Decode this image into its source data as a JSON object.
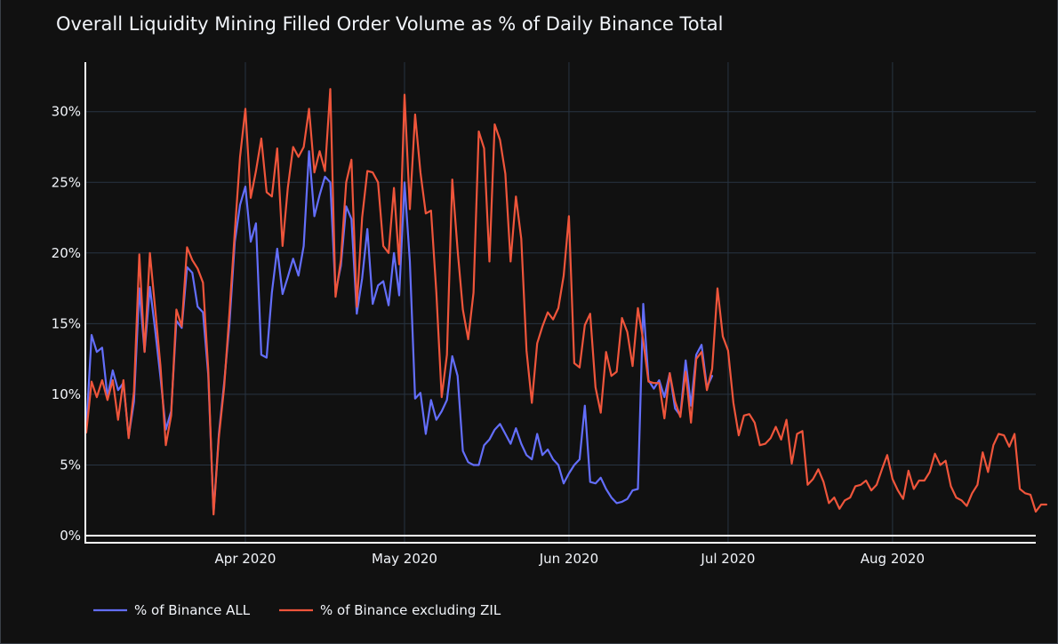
{
  "chart_data": {
    "type": "line",
    "title": "Overall Liquidity Mining Filled Order Volume as % of Daily Binance Total",
    "xlabel": "",
    "ylabel": "",
    "x_start": "2020-03-02",
    "x_ticks": [
      {
        "label": "Apr 2020",
        "day": 30
      },
      {
        "label": "May 2020",
        "day": 60
      },
      {
        "label": "Jun 2020",
        "day": 91
      },
      {
        "label": "Jul 2020",
        "day": 121
      },
      {
        "label": "Aug 2020",
        "day": 152
      }
    ],
    "x_range_days": [
      0,
      179
    ],
    "y_range": [
      -0.5,
      33.5
    ],
    "y_ticks": [
      {
        "label": "0%",
        "value": 0
      },
      {
        "label": "5%",
        "value": 5
      },
      {
        "label": "10%",
        "value": 10
      },
      {
        "label": "15%",
        "value": 15
      },
      {
        "label": "20%",
        "value": 20
      },
      {
        "label": "25%",
        "value": 25
      },
      {
        "label": "30%",
        "value": 30
      }
    ],
    "legend_position": "bottom-left",
    "series": [
      {
        "name": "% of Binance ALL",
        "color": "#636efa",
        "values": [
          7.5,
          14.2,
          13.0,
          13.3,
          9.8,
          11.7,
          10.3,
          10.8,
          7.0,
          9.5,
          17.5,
          13.0,
          17.6,
          14.5,
          11.2,
          7.5,
          8.8,
          15.2,
          14.7,
          19.0,
          18.6,
          16.2,
          15.8,
          11.4,
          1.6,
          7.2,
          10.8,
          15.0,
          20.8,
          23.4,
          24.7,
          20.8,
          22.1,
          12.8,
          12.6,
          17.2,
          20.3,
          17.1,
          18.3,
          19.6,
          18.4,
          20.5,
          27.2,
          22.6,
          24.1,
          25.4,
          25.0,
          17.2,
          19.1,
          23.3,
          22.4,
          15.7,
          18.2,
          21.7,
          16.4,
          17.7,
          18.0,
          16.3,
          20.0,
          17.0,
          25.0,
          19.4,
          9.7,
          10.1,
          7.2,
          9.6,
          8.2,
          8.8,
          9.6,
          12.7,
          11.3,
          6.0,
          5.2,
          5.0,
          5.0,
          6.4,
          6.8,
          7.5,
          7.9,
          7.2,
          6.5,
          7.6,
          6.5,
          5.7,
          5.4,
          7.2,
          5.7,
          6.1,
          5.4,
          5.0,
          3.7,
          4.4,
          5.0,
          5.4,
          9.2,
          3.8,
          3.7,
          4.1,
          3.3,
          2.7,
          2.3,
          2.4,
          2.6,
          3.2,
          3.3,
          16.4,
          11.0,
          10.4,
          11.0,
          9.8,
          11.5,
          9.0,
          8.5,
          12.4,
          9.2,
          12.8,
          13.5,
          10.5,
          11.3
        ]
      },
      {
        "name": "% of Binance excluding ZIL",
        "color": "#ef553b",
        "values": [
          7.3,
          10.9,
          9.8,
          11.0,
          9.6,
          11.0,
          8.2,
          11.0,
          6.9,
          10.2,
          19.9,
          13.0,
          20.0,
          16.0,
          12.0,
          6.4,
          8.5,
          16.0,
          14.8,
          20.4,
          19.5,
          18.9,
          17.9,
          11.8,
          1.5,
          7.0,
          10.5,
          15.8,
          21.5,
          26.8,
          30.2,
          23.9,
          25.8,
          28.1,
          24.3,
          24.0,
          27.4,
          20.5,
          24.6,
          27.5,
          26.8,
          27.5,
          30.2,
          25.7,
          27.2,
          25.8,
          31.6,
          16.9,
          19.5,
          25.0,
          26.6,
          16.2,
          22.5,
          25.8,
          25.7,
          25.0,
          20.5,
          20.0,
          24.6,
          19.2,
          31.2,
          23.1,
          29.8,
          25.7,
          22.8,
          23.0,
          17.2,
          9.8,
          12.8,
          25.2,
          20.2,
          16.0,
          13.9,
          17.2,
          28.6,
          27.4,
          19.4,
          29.1,
          28.0,
          25.6,
          19.4,
          24.0,
          21.0,
          13.1,
          9.4,
          13.6,
          14.8,
          15.8,
          15.3,
          16.1,
          18.4,
          22.6,
          12.2,
          11.9,
          14.9,
          15.7,
          10.5,
          8.7,
          13.0,
          11.3,
          11.6,
          15.4,
          14.4,
          12.0,
          16.1,
          13.8,
          10.9,
          10.8,
          10.8,
          8.3,
          11.5,
          9.5,
          8.4,
          11.6,
          8.0,
          12.5,
          13.0,
          10.3,
          11.8,
          17.5,
          14.1,
          13.1,
          9.4,
          7.1,
          8.5,
          8.6,
          8.0,
          6.4,
          6.5,
          6.9,
          7.7,
          6.8,
          8.2,
          5.1,
          7.2,
          7.4,
          3.6,
          4.0,
          4.7,
          3.8,
          2.3,
          2.7,
          1.9,
          2.5,
          2.7,
          3.5,
          3.6,
          3.9,
          3.2,
          3.6,
          4.7,
          5.7,
          4.0,
          3.2,
          2.6,
          4.6,
          3.3,
          3.9,
          3.9,
          4.5,
          5.8,
          5.0,
          5.3,
          3.5,
          2.7,
          2.5,
          2.1,
          3.0,
          3.6,
          5.9,
          4.5,
          6.4,
          7.2,
          7.1,
          6.3,
          7.2,
          3.3,
          3.0,
          2.9,
          1.7,
          2.2,
          2.2
        ]
      }
    ]
  }
}
